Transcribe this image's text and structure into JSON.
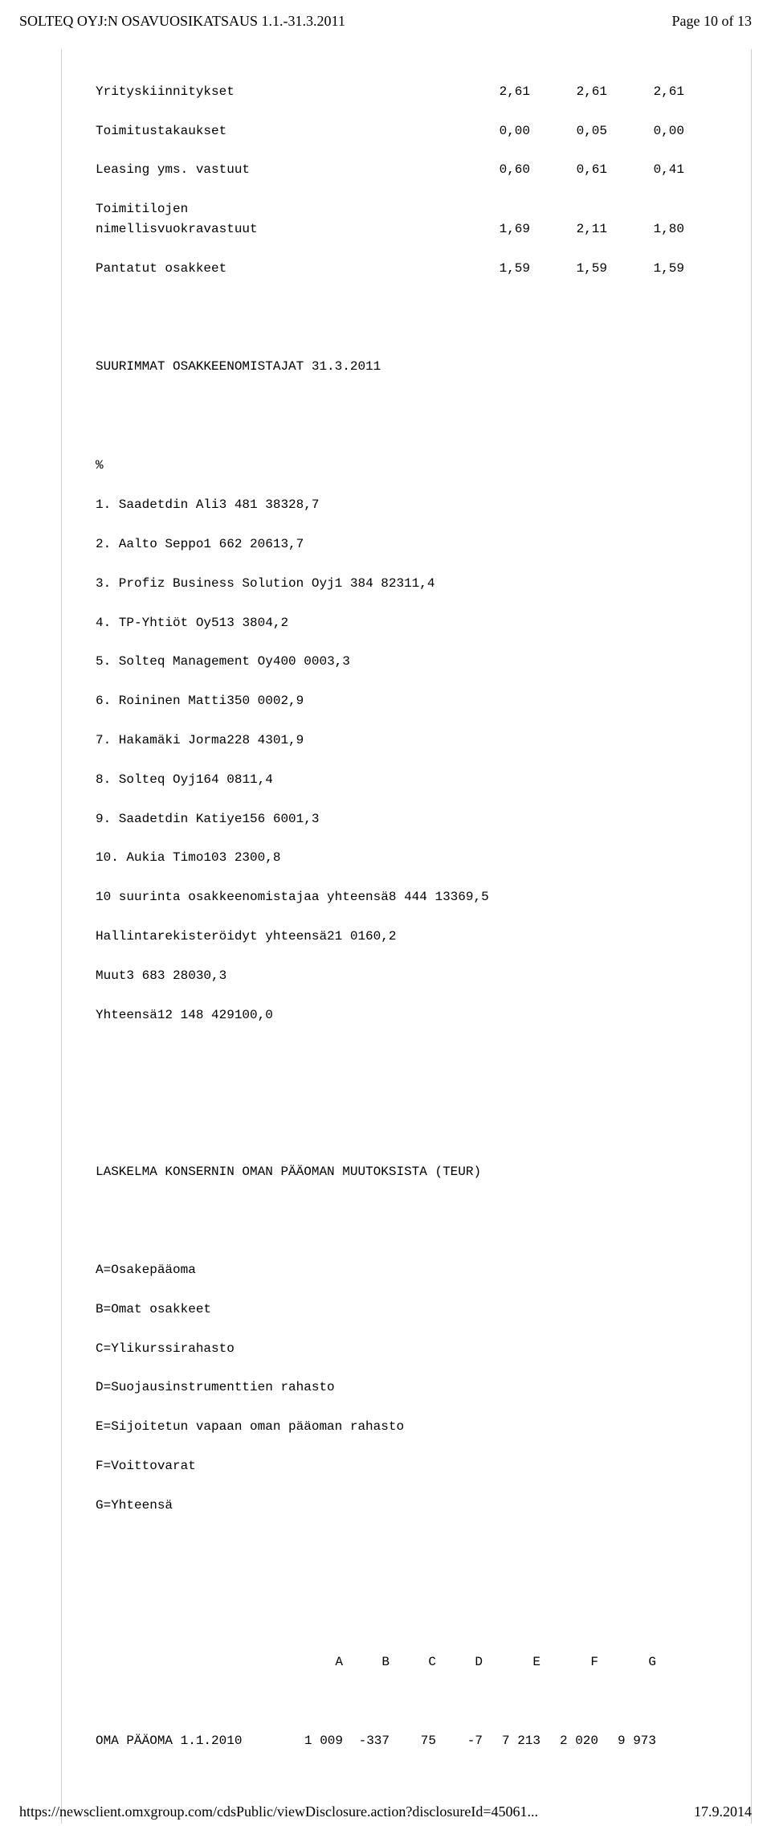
{
  "header": {
    "title": "SOLTEQ OYJ:N OSAVUOSIKATSAUS 1.1.-31.3.2011",
    "page_info": "Page 10 of 13"
  },
  "table1": {
    "rows": [
      {
        "label": "Yrityskiinnitykset",
        "c1": "2,61",
        "c2": "2,61",
        "c3": "2,61"
      },
      {
        "label": "Toimitustakaukset",
        "c1": "0,00",
        "c2": "0,05",
        "c3": "0,00"
      },
      {
        "label": "Leasing yms. vastuut",
        "c1": "0,60",
        "c2": "0,61",
        "c3": "0,41"
      },
      {
        "label": "Toimitilojen",
        "c1": "",
        "c2": "",
        "c3": ""
      },
      {
        "label": "nimellisvuokravastuut",
        "c1": "1,69",
        "c2": "2,11",
        "c3": "1,80"
      },
      {
        "label": "Pantatut osakkeet",
        "c1": "1,59",
        "c2": "1,59",
        "c3": "1,59"
      }
    ]
  },
  "section2_title": "SUURIMMAT OSAKKEENOMISTAJAT 31.3.2011",
  "pct_header": "%",
  "table2": {
    "rows": [
      {
        "label": "1. Saadetdin Ali",
        "a": "3 481 383",
        "b": "28,7"
      },
      {
        "label": "2. Aalto Seppo",
        "a": "1 662 206",
        "b": "13,7"
      },
      {
        "label": "3. Profiz Business Solution Oyj",
        "a": "1 384 823",
        "b": "11,4"
      },
      {
        "label": "4. TP-Yhtiöt Oy",
        "a": "513 380",
        "b": "4,2"
      },
      {
        "label": "5. Solteq Management Oy",
        "a": "400 000",
        "b": "3,3"
      },
      {
        "label": "6. Roininen Matti",
        "a": "350 000",
        "b": "2,9"
      },
      {
        "label": "7. Hakamäki Jorma",
        "a": "228 430",
        "b": "1,9"
      },
      {
        "label": "8. Solteq Oyj",
        "a": "164 081",
        "b": "1,4"
      },
      {
        "label": "9. Saadetdin Katiye",
        "a": "156 600",
        "b": "1,3"
      },
      {
        "label": "10. Aukia Timo",
        "a": "103 230",
        "b": "0,8"
      },
      {
        "label": "10 suurinta osakkeenomistajaa yhteensä",
        "a": "8 444 133",
        "b": "69,5"
      },
      {
        "label": "Hallintarekisteröidyt yhteensä",
        "a": "21 016",
        "b": "0,2"
      },
      {
        "label": "Muut",
        "a": "3 683 280",
        "b": "30,3"
      },
      {
        "label": "Yhteensä",
        "a": "12 148 429",
        "b": "100,0"
      }
    ]
  },
  "section3_title": "LASKELMA KONSERNIN OMAN PÄÄOMAN MUUTOKSISTA (TEUR)",
  "legend": [
    "A=Osakepääoma",
    "B=Omat osakkeet",
    "C=Ylikurssirahasto",
    "D=Suojausinstrumenttien rahasto",
    "E=Sijoitetun vapaan oman pääoman rahasto",
    "F=Voittovarat",
    "G=Yhteensä"
  ],
  "equity_header": {
    "A": "A",
    "B": "B",
    "C": "C",
    "D": "D",
    "E": "E",
    "F": "F",
    "G": "G"
  },
  "equity_row": {
    "label": "OMA PÄÄOMA 1.1.2010",
    "A": "1 009",
    "B": "-337",
    "C": "75",
    "D": "-7",
    "E": "7 213",
    "F": "2 020",
    "G": "9 973"
  },
  "footer": {
    "url": "https://newsclient.omxgroup.com/cdsPublic/viewDisclosure.action?disclosureId=45061...",
    "date": "17.9.2014"
  }
}
